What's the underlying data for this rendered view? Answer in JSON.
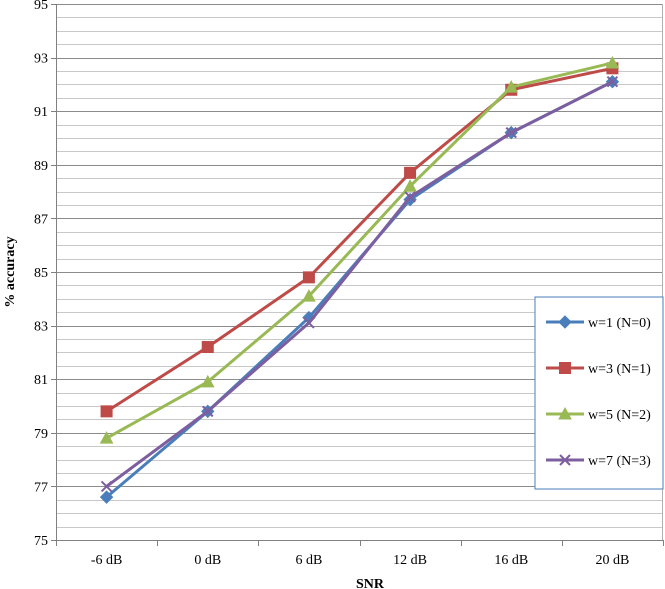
{
  "chart_data": {
    "type": "line",
    "xlabel": "SNR",
    "ylabel": "% accuracy",
    "categories": [
      "-6 dB",
      "0 dB",
      "6 dB",
      "12 dB",
      "16 dB",
      "20 dB"
    ],
    "ylim": [
      75,
      95
    ],
    "y_ticks": [
      "75",
      "77",
      "79",
      "81",
      "83",
      "85",
      "87",
      "89",
      "91",
      "93",
      "95"
    ],
    "grid": true,
    "legend_position": "right",
    "series": [
      {
        "name": "w=1 (N=0)",
        "color": "#4a7ebb",
        "marker": "diamond",
        "values": [
          76.6,
          79.8,
          83.3,
          87.7,
          90.2,
          92.1
        ]
      },
      {
        "name": "w=3 (N=1)",
        "color": "#be4b48",
        "marker": "square",
        "values": [
          79.8,
          82.2,
          84.8,
          88.7,
          91.8,
          92.6
        ]
      },
      {
        "name": "w=5 (N=2)",
        "color": "#98b954",
        "marker": "triangle",
        "values": [
          78.8,
          80.9,
          84.1,
          88.2,
          91.9,
          92.8
        ]
      },
      {
        "name": "w=7 (N=3)",
        "color": "#7d5fa0",
        "marker": "x",
        "values": [
          77.0,
          79.8,
          83.1,
          87.8,
          90.2,
          92.1
        ]
      }
    ]
  }
}
